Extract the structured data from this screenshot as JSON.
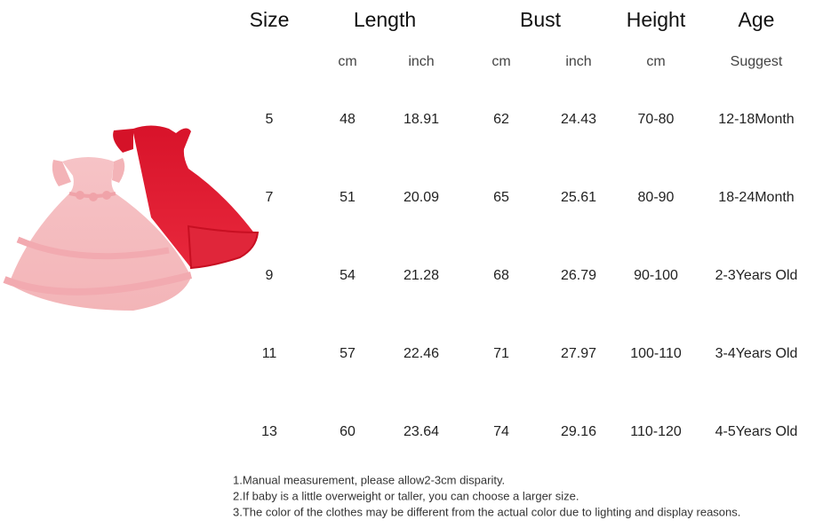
{
  "table": {
    "headers": [
      "Size",
      "Length",
      "Bust",
      "Height",
      "Age"
    ],
    "units": [
      "cm",
      "inch",
      "cm",
      "inch",
      "cm",
      "Suggest"
    ],
    "rows": [
      [
        "5",
        "48",
        "18.91",
        "62",
        "24.43",
        "70-80",
        "12-18Month"
      ],
      [
        "7",
        "51",
        "20.09",
        "65",
        "25.61",
        "80-90",
        "18-24Month"
      ],
      [
        "9",
        "54",
        "21.28",
        "68",
        "26.79",
        "90-100",
        "2-3Years Old"
      ],
      [
        "11",
        "57",
        "22.46",
        "71",
        "27.97",
        "100-110",
        "3-4Years Old"
      ],
      [
        "13",
        "60",
        "23.64",
        "74",
        "29.16",
        "110-120",
        "4-5Years Old"
      ]
    ]
  },
  "notes": [
    "1.Manual measurement, please allow2-3cm disparity.",
    "2.If baby is a little overweight or taller, you can choose a larger size.",
    "3.The color of the clothes may be different from the actual color due to lighting and display reasons."
  ]
}
